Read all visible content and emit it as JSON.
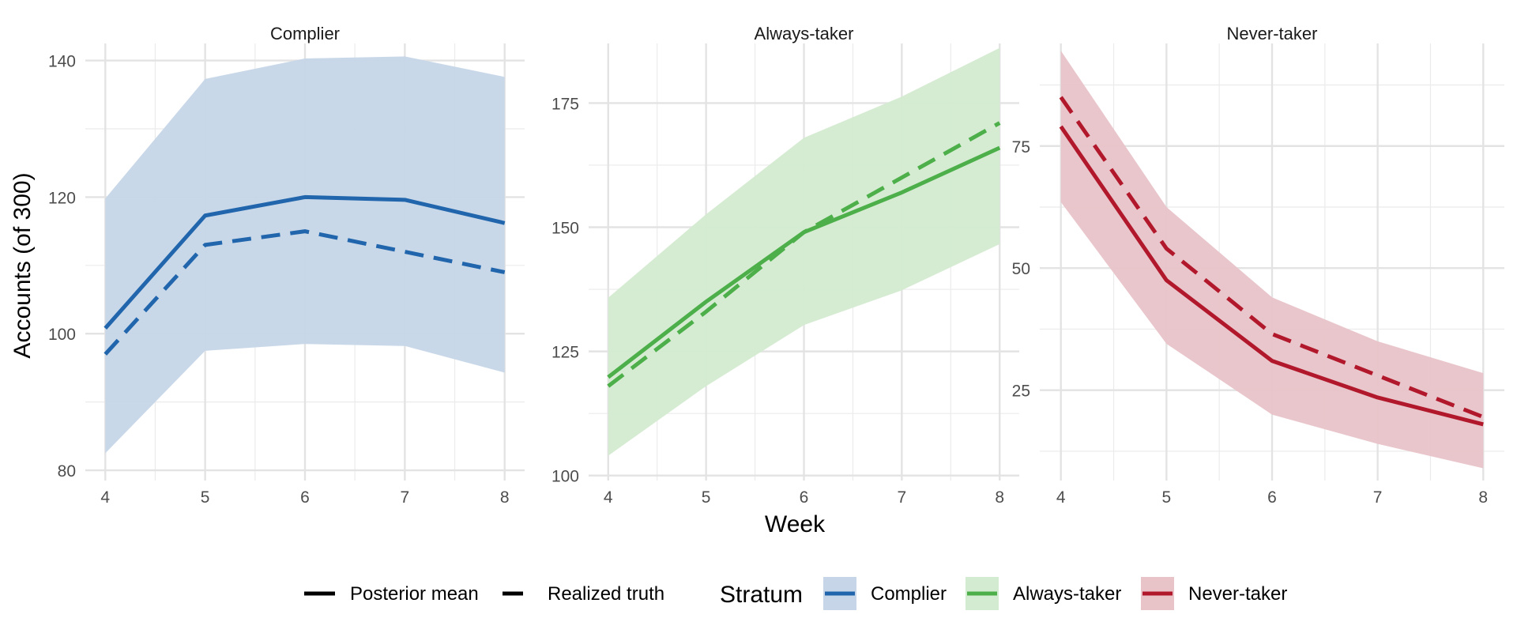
{
  "chart_data": {
    "type": "line",
    "ylabel": "Accounts (of 300)",
    "xlabel": "Week",
    "x": [
      4,
      5,
      6,
      7,
      8
    ],
    "grid": true,
    "legend": {
      "placement": "bottom",
      "linetypes": [
        {
          "label": "Posterior mean",
          "style": "solid"
        },
        {
          "label": "Realized truth",
          "style": "dashed"
        }
      ],
      "title": "Stratum",
      "strata": [
        {
          "label": "Complier",
          "color": "#2166ac"
        },
        {
          "label": "Always-taker",
          "color": "#4daf4a"
        },
        {
          "label": "Never-taker",
          "color": "#b2182b"
        }
      ]
    },
    "panels": [
      {
        "title": "Complier",
        "color": "#2166ac",
        "fill": "#c6d6e8",
        "ylim": [
          78.5,
          142.5
        ],
        "yticks": [
          80,
          100,
          120,
          140
        ],
        "posterior_mean": [
          100.8,
          117.3,
          120.0,
          119.6,
          116.2
        ],
        "realized_truth": [
          97.0,
          113.0,
          115.0,
          112.0,
          109.0
        ],
        "ci_lower": [
          82.5,
          97.5,
          98.5,
          98.2,
          94.3
        ],
        "ci_upper": [
          119.8,
          137.3,
          140.3,
          140.6,
          137.6
        ]
      },
      {
        "title": "Always-taker",
        "color": "#4daf4a",
        "fill": "#d3ebd0",
        "ylim": [
          99,
          187
        ],
        "yticks": [
          100,
          125,
          150,
          175
        ],
        "posterior_mean": [
          119.8,
          135.0,
          149.0,
          157.0,
          166.0
        ],
        "realized_truth": [
          118.0,
          133.0,
          149.0,
          160.0,
          171.0
        ],
        "ci_lower": [
          104.0,
          118.0,
          130.3,
          137.3,
          146.6
        ],
        "ci_upper": [
          135.8,
          152.6,
          168.0,
          176.3,
          186.1
        ]
      },
      {
        "title": "Never-taker",
        "color": "#b2182b",
        "fill": "#e8c3c8",
        "ylim": [
          6.5,
          96
        ],
        "yticks": [
          25,
          50,
          75
        ],
        "posterior_mean": [
          79.0,
          47.5,
          31.0,
          23.5,
          18.0
        ],
        "realized_truth": [
          85.0,
          54.0,
          36.5,
          28.0,
          19.5
        ],
        "ci_lower": [
          63.5,
          34.5,
          20.0,
          14.0,
          9.0
        ],
        "ci_upper": [
          94.5,
          62.5,
          44.0,
          35.0,
          28.5
        ]
      }
    ]
  }
}
